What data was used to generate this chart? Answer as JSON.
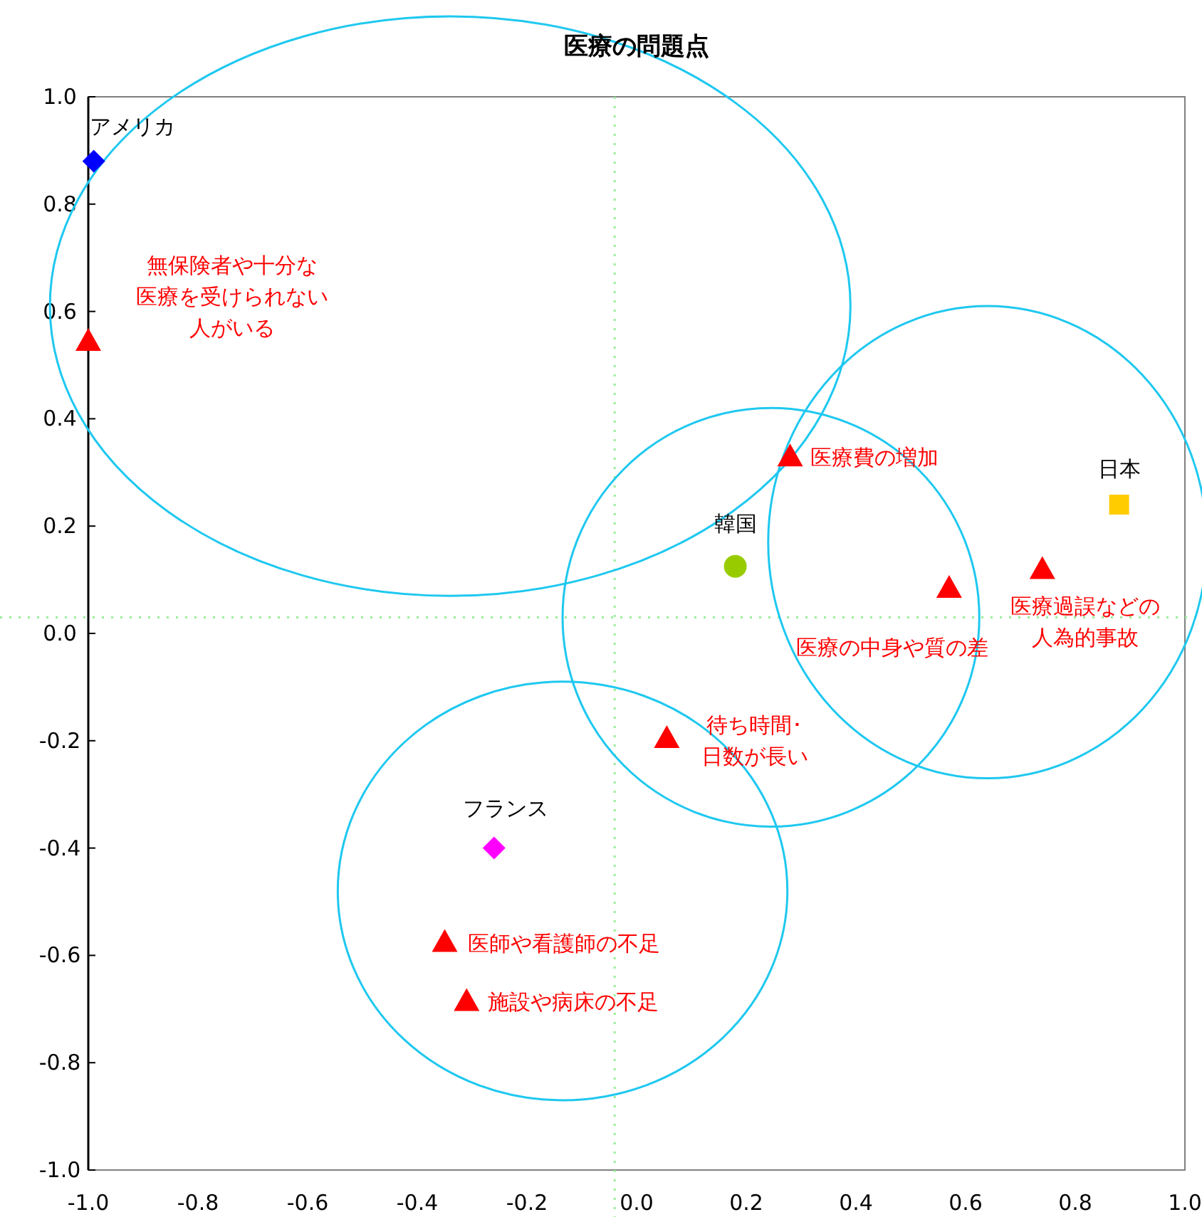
{
  "chart_data": {
    "type": "scatter",
    "title": "医療の問題点",
    "xlim": [
      -1,
      1
    ],
    "ylim": [
      -1,
      1
    ],
    "xticks": [
      {
        "value": -1,
        "label": "-1.0"
      },
      {
        "value": -0.8,
        "label": "-0.8"
      },
      {
        "value": -0.6,
        "label": "-0.6"
      },
      {
        "value": -0.4,
        "label": "-0.4"
      },
      {
        "value": -0.2,
        "label": "-0.2"
      },
      {
        "value": 0,
        "label": "0.0"
      },
      {
        "value": 0.2,
        "label": "0.2"
      },
      {
        "value": 0.4,
        "label": "0.4"
      },
      {
        "value": 0.6,
        "label": "0.6"
      },
      {
        "value": 0.8,
        "label": "0.8"
      },
      {
        "value": 1,
        "label": "1.0"
      }
    ],
    "yticks": [
      {
        "value": -1,
        "label": "-1.0"
      },
      {
        "value": -0.8,
        "label": "-0.8"
      },
      {
        "value": -0.6,
        "label": "-0.6"
      },
      {
        "value": -0.4,
        "label": "-0.4"
      },
      {
        "value": -0.2,
        "label": "-0.2"
      },
      {
        "value": 0,
        "label": "0.0"
      },
      {
        "value": 0.2,
        "label": "0.2"
      },
      {
        "value": 0.4,
        "label": "0.4"
      },
      {
        "value": 0.6,
        "label": "0.6"
      },
      {
        "value": 0.8,
        "label": "0.8"
      },
      {
        "value": 1,
        "label": "1.0"
      }
    ],
    "grid": false,
    "legend": false,
    "ref_lines": [
      {
        "axis": "x",
        "value": -0.04,
        "color": "#99ee99",
        "line_style": "dotted"
      },
      {
        "axis": "y",
        "value": 0.03,
        "color": "#99ee99",
        "line_style": "dotted"
      }
    ],
    "series": [
      {
        "name": "アメリカ",
        "color": "#0000ff",
        "marker": "diamond",
        "x": [
          -0.99
        ],
        "values": [
          0.88
        ]
      },
      {
        "name": "日本",
        "color": "#ffcc00",
        "marker": "square",
        "x": [
          0.88
        ],
        "values": [
          0.24
        ]
      },
      {
        "name": "韓国",
        "color": "#99cc00",
        "marker": "circle",
        "x": [
          0.18
        ],
        "values": [
          0.125
        ]
      },
      {
        "name": "フランス",
        "color": "#ff00ff",
        "marker": "diamond",
        "x": [
          -0.26
        ],
        "values": [
          -0.4
        ]
      },
      {
        "name": "無保険者や十分な医療を受けられない人がいる",
        "color": "#ff0000",
        "marker": "triangle",
        "x": [
          -1.0
        ],
        "values": [
          0.545
        ]
      },
      {
        "name": "医療費の増加",
        "color": "#ff0000",
        "marker": "triangle",
        "x": [
          0.28
        ],
        "values": [
          0.33
        ]
      },
      {
        "name": "医療の中身や質の差",
        "color": "#ff0000",
        "marker": "triangle",
        "x": [
          0.57
        ],
        "values": [
          0.085
        ]
      },
      {
        "name": "医療過誤などの人為的事故",
        "color": "#ff0000",
        "marker": "triangle",
        "x": [
          0.74
        ],
        "values": [
          0.12
        ]
      },
      {
        "name": "待ち時間･日数が長い",
        "color": "#ff0000",
        "marker": "triangle",
        "x": [
          0.055
        ],
        "values": [
          -0.195
        ]
      },
      {
        "name": "医師や看護師の不足",
        "color": "#ff0000",
        "marker": "triangle",
        "x": [
          -0.35
        ],
        "values": [
          -0.575
        ]
      },
      {
        "name": "施設や病床の不足",
        "color": "#ff0000",
        "marker": "triangle",
        "x": [
          -0.31
        ],
        "values": [
          -0.685
        ]
      }
    ]
  }
}
